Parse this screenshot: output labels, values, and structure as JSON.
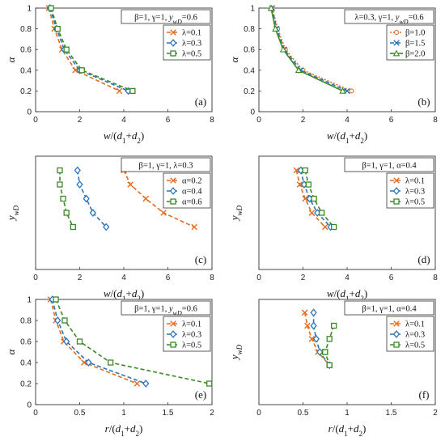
{
  "colors": {
    "orange": "#E46C1E",
    "blue": "#2E74B5",
    "green": "#3A8A25"
  },
  "chart_data": [
    {
      "type": "line",
      "tag": "(a)",
      "header": "β=1, γ=1, y_wD=0.6",
      "xlabel": "w/(d1+d2)",
      "ylabel": "α",
      "xlim": [
        0,
        8
      ],
      "ylim": [
        0,
        1
      ],
      "xticks": [
        "0",
        "2",
        "4",
        "6",
        "8"
      ],
      "yticks": [
        "0",
        "0.2",
        "0.4",
        "0.6",
        "0.8",
        "1"
      ],
      "xtick_values": [
        0,
        2,
        4,
        6,
        8
      ],
      "ytick_values": [
        0,
        0.2,
        0.4,
        0.6,
        0.8,
        1
      ],
      "legend_pos": "top-right",
      "series": [
        {
          "name": "λ=0.1",
          "color": "#E46C1E",
          "dash": "dash",
          "marker": "x",
          "x": [
            0.6,
            0.85,
            1.2,
            1.8,
            3.8
          ],
          "y": [
            1,
            0.8,
            0.6,
            0.4,
            0.2
          ]
        },
        {
          "name": "λ=0.3",
          "color": "#2E74B5",
          "dash": "dash",
          "marker": "diamond",
          "x": [
            0.65,
            0.95,
            1.3,
            2.0,
            4.2
          ],
          "y": [
            1,
            0.8,
            0.6,
            0.4,
            0.2
          ]
        },
        {
          "name": "λ=0.5",
          "color": "#3A8A25",
          "dash": "dash",
          "marker": "square",
          "x": [
            0.7,
            1.0,
            1.4,
            2.1,
            4.4
          ],
          "y": [
            1,
            0.8,
            0.6,
            0.4,
            0.2
          ]
        }
      ]
    },
    {
      "type": "line",
      "tag": "(b)",
      "header": "λ=0.3, γ=1, y_wD=0.6",
      "xlabel": "w/(d1+d2)",
      "ylabel": "α",
      "xlim": [
        0,
        8
      ],
      "ylim": [
        0,
        1
      ],
      "xticks": [
        "0",
        "2",
        "4",
        "6",
        "8"
      ],
      "yticks": [
        "0",
        "0.2",
        "0.4",
        "0.6",
        "0.8",
        "1"
      ],
      "xtick_values": [
        0,
        2,
        4,
        6,
        8
      ],
      "ytick_values": [
        0,
        0.2,
        0.4,
        0.6,
        0.8,
        1
      ],
      "legend_pos": "top-right",
      "series": [
        {
          "name": "β=1.0",
          "color": "#E46C1E",
          "dash": "dot",
          "marker": "circle",
          "x": [
            0.6,
            0.85,
            1.2,
            2.0,
            4.2
          ],
          "y": [
            1,
            0.8,
            0.6,
            0.4,
            0.2
          ]
        },
        {
          "name": "β=1.5",
          "color": "#2E74B5",
          "dash": "dash",
          "marker": "x",
          "x": [
            0.6,
            0.8,
            1.15,
            1.9,
            4.0
          ],
          "y": [
            1,
            0.8,
            0.6,
            0.4,
            0.2
          ]
        },
        {
          "name": "β=2.0",
          "color": "#3A8A25",
          "dash": "solid",
          "marker": "triangle",
          "x": [
            0.55,
            0.75,
            1.1,
            1.8,
            3.8
          ],
          "y": [
            1,
            0.8,
            0.6,
            0.4,
            0.2
          ]
        }
      ]
    },
    {
      "type": "line",
      "tag": "(c)",
      "header": "β=1, γ=1, λ=0.3",
      "xlabel": "w/(d1+d2)",
      "ylabel": "y_wD",
      "xlim": [
        0,
        8
      ],
      "ylim": [
        0,
        0.8
      ],
      "xticks": [
        "0",
        "2",
        "4",
        "6",
        "8"
      ],
      "yticks": [],
      "xtick_values": [
        0,
        2,
        4,
        6,
        8
      ],
      "ytick_values": [],
      "legend_pos": "top-right",
      "series": [
        {
          "name": "α=0.2",
          "color": "#E46C1E",
          "dash": "dash",
          "marker": "x",
          "x": [
            4.0,
            4.3,
            5.0,
            5.8,
            7.2
          ],
          "y": [
            0.7,
            0.6,
            0.5,
            0.4,
            0.3
          ]
        },
        {
          "name": "α=0.4",
          "color": "#2E74B5",
          "dash": "dash",
          "marker": "diamond",
          "x": [
            1.9,
            2.0,
            2.3,
            2.6,
            3.2
          ],
          "y": [
            0.7,
            0.6,
            0.5,
            0.4,
            0.3
          ]
        },
        {
          "name": "α=0.6",
          "color": "#3A8A25",
          "dash": "dash",
          "marker": "square",
          "x": [
            1.1,
            1.1,
            1.25,
            1.4,
            1.7
          ],
          "y": [
            0.7,
            0.6,
            0.5,
            0.4,
            0.3
          ]
        }
      ]
    },
    {
      "type": "line",
      "tag": "(d)",
      "header": "β=1, γ=1, α=0.4",
      "xlabel": "w/(d1+d2)",
      "ylabel": "y_wD",
      "xlim": [
        0,
        8
      ],
      "ylim": [
        0,
        0.8
      ],
      "xticks": [
        "0",
        "2",
        "4",
        "6",
        "8"
      ],
      "yticks": [],
      "xtick_values": [
        0,
        2,
        4,
        6,
        8
      ],
      "ytick_values": [],
      "legend_pos": "top-right",
      "series": [
        {
          "name": "λ=0.1",
          "color": "#E46C1E",
          "dash": "dash",
          "marker": "x",
          "x": [
            1.7,
            1.85,
            2.1,
            2.4,
            3.0
          ],
          "y": [
            0.7,
            0.6,
            0.5,
            0.4,
            0.3
          ]
        },
        {
          "name": "λ=0.3",
          "color": "#2E74B5",
          "dash": "dash",
          "marker": "diamond",
          "x": [
            1.9,
            2.05,
            2.3,
            2.65,
            3.25
          ],
          "y": [
            0.7,
            0.6,
            0.5,
            0.4,
            0.3
          ]
        },
        {
          "name": "λ=0.5",
          "color": "#3A8A25",
          "dash": "dash",
          "marker": "square",
          "x": [
            2.1,
            2.25,
            2.5,
            2.85,
            3.4
          ],
          "y": [
            0.7,
            0.6,
            0.5,
            0.4,
            0.3
          ]
        }
      ]
    },
    {
      "type": "line",
      "tag": "(e)",
      "header": "β=1, γ=1, y_wD=0.6",
      "xlabel": "r/(d1+d2)",
      "ylabel": "α",
      "xlim": [
        0,
        2
      ],
      "ylim": [
        0,
        1
      ],
      "xticks": [
        "0",
        "0.5",
        "1",
        "1.5",
        "2"
      ],
      "yticks": [
        "0",
        "0.2",
        "0.4",
        "0.6",
        "0.8",
        "1"
      ],
      "xtick_values": [
        0,
        0.5,
        1,
        1.5,
        2
      ],
      "ytick_values": [
        0,
        0.2,
        0.4,
        0.6,
        0.8,
        1
      ],
      "legend_pos": "top-right",
      "series": [
        {
          "name": "λ=0.1",
          "color": "#E46C1E",
          "dash": "dash",
          "marker": "x",
          "x": [
            0.17,
            0.23,
            0.32,
            0.55,
            1.15
          ],
          "y": [
            1,
            0.8,
            0.6,
            0.4,
            0.2
          ]
        },
        {
          "name": "λ=0.3",
          "color": "#2E74B5",
          "dash": "dash",
          "marker": "diamond",
          "x": [
            0.19,
            0.25,
            0.35,
            0.6,
            1.25
          ],
          "y": [
            1,
            0.8,
            0.6,
            0.4,
            0.2
          ]
        },
        {
          "name": "λ=0.5",
          "color": "#3A8A25",
          "dash": "dash",
          "marker": "square",
          "x": [
            0.23,
            0.33,
            0.5,
            0.85,
            1.97
          ],
          "y": [
            1,
            0.8,
            0.6,
            0.4,
            0.2
          ]
        }
      ]
    },
    {
      "type": "line",
      "tag": "(f)",
      "header": "β=1, γ=1, α=0.4",
      "xlabel": "r/(d1+d2)",
      "ylabel": "y_wD",
      "xlim": [
        0,
        2
      ],
      "ylim": [
        0,
        0.8
      ],
      "xticks": [
        "0",
        "0.5",
        "1",
        "1.5",
        "2"
      ],
      "yticks": [],
      "xtick_values": [
        0,
        0.5,
        1,
        1.5,
        2
      ],
      "ytick_values": [],
      "legend_pos": "top-right",
      "series": [
        {
          "name": "λ=0.1",
          "color": "#E46C1E",
          "dash": "dash",
          "marker": "x",
          "x": [
            0.52,
            0.55,
            0.6,
            0.67,
            0.8
          ],
          "y": [
            0.7,
            0.6,
            0.5,
            0.4,
            0.3
          ]
        },
        {
          "name": "λ=0.3",
          "color": "#2E74B5",
          "dash": "dash",
          "marker": "diamond",
          "x": [
            0.62,
            0.62,
            0.65,
            0.69,
            0.8
          ],
          "y": [
            0.7,
            0.6,
            0.5,
            0.4,
            0.3
          ]
        },
        {
          "name": "λ=0.5",
          "color": "#3A8A25",
          "dash": "dash",
          "marker": "square",
          "x": [
            0.85,
            0.8,
            0.75,
            0.75,
            0.8
          ],
          "y": [
            0.6,
            0.5,
            0.4,
            0.4,
            0.3
          ]
        }
      ]
    }
  ]
}
